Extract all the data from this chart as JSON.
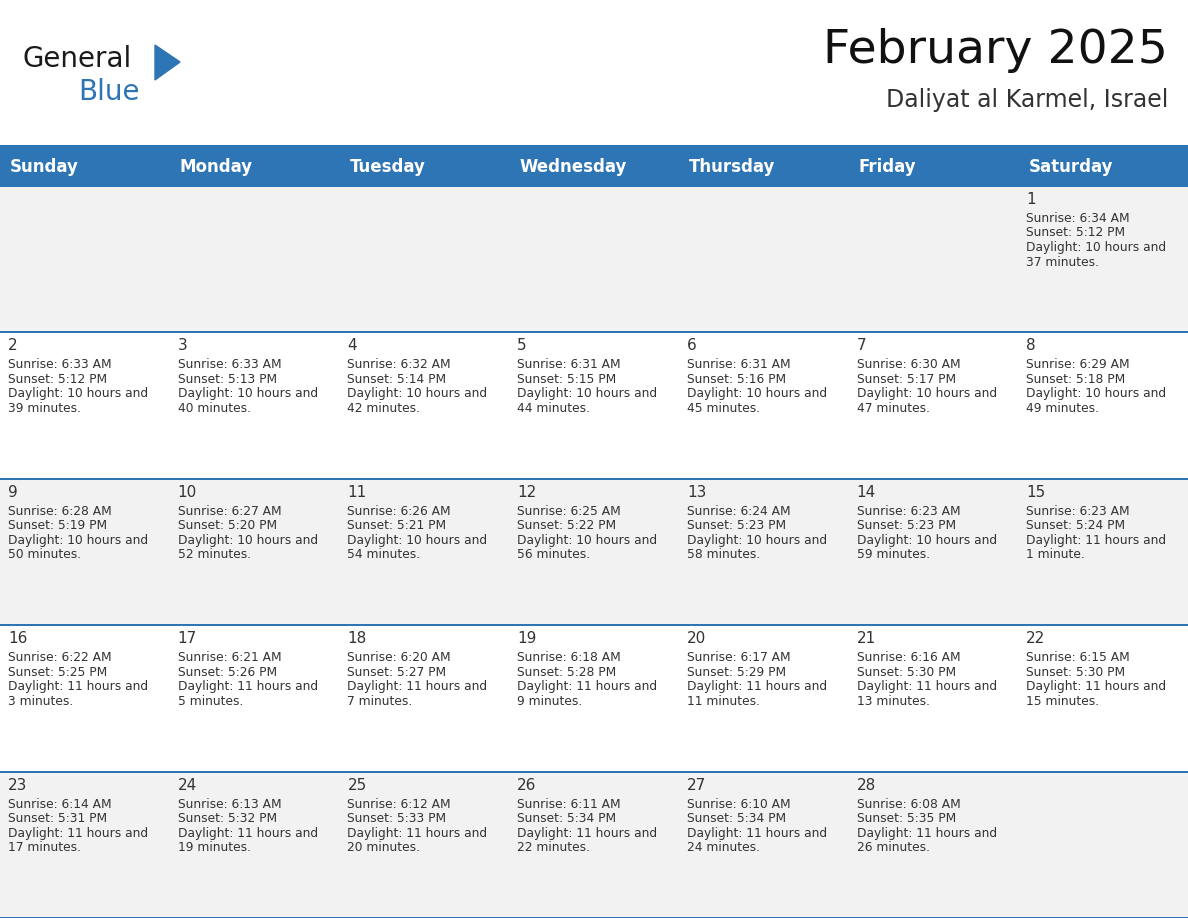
{
  "title": "February 2025",
  "subtitle": "Daliyat al Karmel, Israel",
  "header_bg": "#2E75B6",
  "header_text": "#FFFFFF",
  "header_days": [
    "Sunday",
    "Monday",
    "Tuesday",
    "Wednesday",
    "Thursday",
    "Friday",
    "Saturday"
  ],
  "row_bg_even": "#F2F2F2",
  "row_bg_white": "#FFFFFF",
  "border_color": "#2E75B6",
  "day_number_color": "#333333",
  "info_color": "#333333",
  "logo_general_color": "#1a1a1a",
  "logo_blue_color": "#2E75B6",
  "days": [
    {
      "day": 1,
      "col": 6,
      "row": 0,
      "sunrise": "6:34 AM",
      "sunset": "5:12 PM",
      "daylight": "10 hours and 37 minutes."
    },
    {
      "day": 2,
      "col": 0,
      "row": 1,
      "sunrise": "6:33 AM",
      "sunset": "5:12 PM",
      "daylight": "10 hours and 39 minutes."
    },
    {
      "day": 3,
      "col": 1,
      "row": 1,
      "sunrise": "6:33 AM",
      "sunset": "5:13 PM",
      "daylight": "10 hours and 40 minutes."
    },
    {
      "day": 4,
      "col": 2,
      "row": 1,
      "sunrise": "6:32 AM",
      "sunset": "5:14 PM",
      "daylight": "10 hours and 42 minutes."
    },
    {
      "day": 5,
      "col": 3,
      "row": 1,
      "sunrise": "6:31 AM",
      "sunset": "5:15 PM",
      "daylight": "10 hours and 44 minutes."
    },
    {
      "day": 6,
      "col": 4,
      "row": 1,
      "sunrise": "6:31 AM",
      "sunset": "5:16 PM",
      "daylight": "10 hours and 45 minutes."
    },
    {
      "day": 7,
      "col": 5,
      "row": 1,
      "sunrise": "6:30 AM",
      "sunset": "5:17 PM",
      "daylight": "10 hours and 47 minutes."
    },
    {
      "day": 8,
      "col": 6,
      "row": 1,
      "sunrise": "6:29 AM",
      "sunset": "5:18 PM",
      "daylight": "10 hours and 49 minutes."
    },
    {
      "day": 9,
      "col": 0,
      "row": 2,
      "sunrise": "6:28 AM",
      "sunset": "5:19 PM",
      "daylight": "10 hours and 50 minutes."
    },
    {
      "day": 10,
      "col": 1,
      "row": 2,
      "sunrise": "6:27 AM",
      "sunset": "5:20 PM",
      "daylight": "10 hours and 52 minutes."
    },
    {
      "day": 11,
      "col": 2,
      "row": 2,
      "sunrise": "6:26 AM",
      "sunset": "5:21 PM",
      "daylight": "10 hours and 54 minutes."
    },
    {
      "day": 12,
      "col": 3,
      "row": 2,
      "sunrise": "6:25 AM",
      "sunset": "5:22 PM",
      "daylight": "10 hours and 56 minutes."
    },
    {
      "day": 13,
      "col": 4,
      "row": 2,
      "sunrise": "6:24 AM",
      "sunset": "5:23 PM",
      "daylight": "10 hours and 58 minutes."
    },
    {
      "day": 14,
      "col": 5,
      "row": 2,
      "sunrise": "6:23 AM",
      "sunset": "5:23 PM",
      "daylight": "10 hours and 59 minutes."
    },
    {
      "day": 15,
      "col": 6,
      "row": 2,
      "sunrise": "6:23 AM",
      "sunset": "5:24 PM",
      "daylight": "11 hours and 1 minute."
    },
    {
      "day": 16,
      "col": 0,
      "row": 3,
      "sunrise": "6:22 AM",
      "sunset": "5:25 PM",
      "daylight": "11 hours and 3 minutes."
    },
    {
      "day": 17,
      "col": 1,
      "row": 3,
      "sunrise": "6:21 AM",
      "sunset": "5:26 PM",
      "daylight": "11 hours and 5 minutes."
    },
    {
      "day": 18,
      "col": 2,
      "row": 3,
      "sunrise": "6:20 AM",
      "sunset": "5:27 PM",
      "daylight": "11 hours and 7 minutes."
    },
    {
      "day": 19,
      "col": 3,
      "row": 3,
      "sunrise": "6:18 AM",
      "sunset": "5:28 PM",
      "daylight": "11 hours and 9 minutes."
    },
    {
      "day": 20,
      "col": 4,
      "row": 3,
      "sunrise": "6:17 AM",
      "sunset": "5:29 PM",
      "daylight": "11 hours and 11 minutes."
    },
    {
      "day": 21,
      "col": 5,
      "row": 3,
      "sunrise": "6:16 AM",
      "sunset": "5:30 PM",
      "daylight": "11 hours and 13 minutes."
    },
    {
      "day": 22,
      "col": 6,
      "row": 3,
      "sunrise": "6:15 AM",
      "sunset": "5:30 PM",
      "daylight": "11 hours and 15 minutes."
    },
    {
      "day": 23,
      "col": 0,
      "row": 4,
      "sunrise": "6:14 AM",
      "sunset": "5:31 PM",
      "daylight": "11 hours and 17 minutes."
    },
    {
      "day": 24,
      "col": 1,
      "row": 4,
      "sunrise": "6:13 AM",
      "sunset": "5:32 PM",
      "daylight": "11 hours and 19 minutes."
    },
    {
      "day": 25,
      "col": 2,
      "row": 4,
      "sunrise": "6:12 AM",
      "sunset": "5:33 PM",
      "daylight": "11 hours and 20 minutes."
    },
    {
      "day": 26,
      "col": 3,
      "row": 4,
      "sunrise": "6:11 AM",
      "sunset": "5:34 PM",
      "daylight": "11 hours and 22 minutes."
    },
    {
      "day": 27,
      "col": 4,
      "row": 4,
      "sunrise": "6:10 AM",
      "sunset": "5:34 PM",
      "daylight": "11 hours and 24 minutes."
    },
    {
      "day": 28,
      "col": 5,
      "row": 4,
      "sunrise": "6:08 AM",
      "sunset": "5:35 PM",
      "daylight": "11 hours and 26 minutes."
    }
  ],
  "num_rows": 5,
  "num_cols": 7,
  "title_font_size": 34,
  "subtitle_font_size": 17,
  "header_font_size": 12,
  "day_num_font_size": 11,
  "cell_font_size": 8.8
}
